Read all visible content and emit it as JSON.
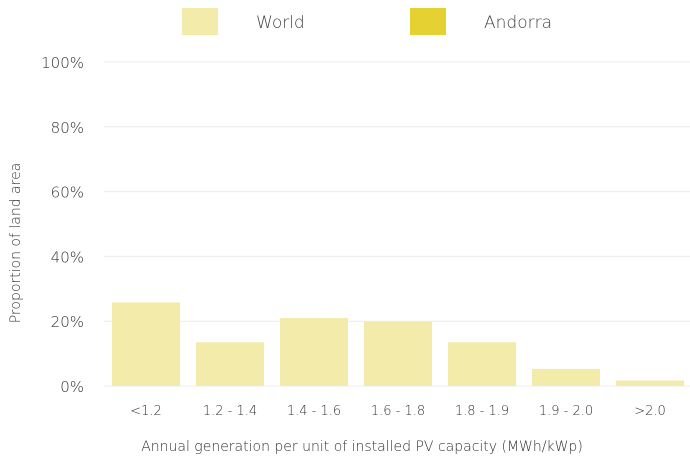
{
  "chart_data": {
    "type": "bar",
    "categories": [
      "<1.2",
      "1.2 - 1.4",
      "1.4 - 1.6",
      "1.6 - 1.8",
      "1.8 - 1.9",
      "1.9 - 2.0",
      ">2.0"
    ],
    "series": [
      {
        "name": "World",
        "values": [
          25.8,
          13.5,
          21.0,
          20.0,
          13.5,
          5.3,
          1.7
        ],
        "color": "#f3eba9"
      },
      {
        "name": "Andorra",
        "values": [
          0,
          0,
          0,
          0,
          0,
          0,
          0
        ],
        "color": "#e5d232"
      }
    ],
    "xlabel": "Annual generation per unit of installed PV capacity (MWh/kWp)",
    "ylabel": "Proportion of land area",
    "ylim": [
      0,
      100
    ],
    "yticks": [
      "0%",
      "20%",
      "40%",
      "60%",
      "80%",
      "100%"
    ],
    "grid": true,
    "legend_position": "top-center"
  }
}
